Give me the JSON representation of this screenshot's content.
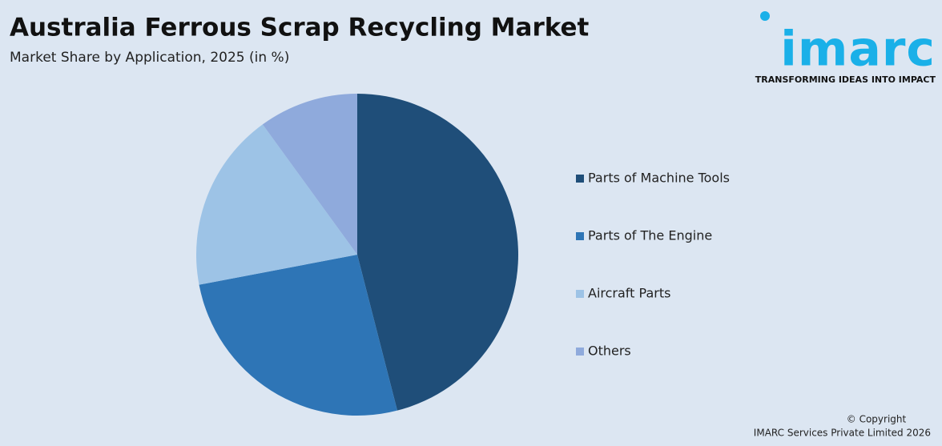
{
  "chart_data": {
    "type": "pie",
    "title": "Australia Ferrous Scrap Recycling Market",
    "subtitle": "Market Share by Application, 2025 (in %)",
    "categories": [
      "Parts of Machine Tools",
      "Parts of The Engine",
      "Aircraft Parts",
      "Others"
    ],
    "values": [
      46,
      26,
      18,
      10
    ],
    "colors": [
      "#1f4e79",
      "#2e75b6",
      "#9dc3e6",
      "#8faadc"
    ],
    "legend": "right"
  },
  "branding": {
    "logo": "imarc",
    "tagline": "TRANSFORMING IDEAS INTO IMPACT",
    "copyright": "© Copyright",
    "owner": "IMARC Services Private Limited 2026"
  }
}
